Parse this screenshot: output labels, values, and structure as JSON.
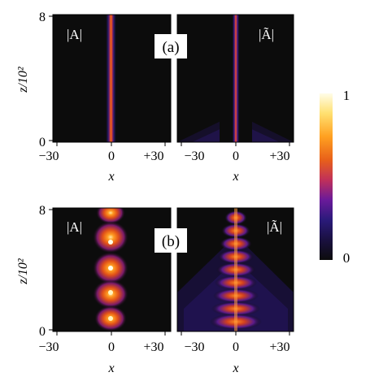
{
  "figure": {
    "rows": [
      {
        "panel_label": "(a)",
        "panels": [
          {
            "inset_label": "|A|",
            "pattern": "straight beam"
          },
          {
            "inset_label": "|Ã|",
            "pattern": "straight beam"
          }
        ],
        "y_axis": {
          "label": "z/10²",
          "ticks": [
            "0",
            "8"
          ]
        },
        "x_axis": {
          "label": "x",
          "ticks": [
            "−30",
            "0",
            "+30"
          ]
        }
      },
      {
        "panel_label": "(b)",
        "panels": [
          {
            "inset_label": "|A|",
            "pattern": "breathing beam"
          },
          {
            "inset_label": "|Ã|",
            "pattern": "breathing beam"
          }
        ],
        "y_axis": {
          "label": "z/10²",
          "ticks": [
            "0",
            "8"
          ]
        },
        "x_axis": {
          "label": "x",
          "ticks": [
            "−30",
            "0",
            "+30"
          ]
        }
      }
    ],
    "colorbar": {
      "max_label": "1",
      "min_label": "0",
      "colors": [
        "#0c0c0c",
        "#2a1a7a",
        "#6a1a9a",
        "#c0305a",
        "#e8601a",
        "#ffa020",
        "#ffe070",
        "#fffde8"
      ]
    }
  }
}
